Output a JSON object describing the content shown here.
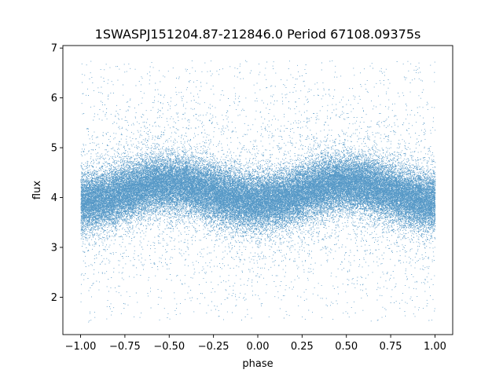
{
  "chart_data": {
    "type": "scatter",
    "title": "1SWASPJ151204.87-212846.0 Period 67108.09375s",
    "xlabel": "phase",
    "ylabel": "flux",
    "xlim": [
      -1.1,
      1.1
    ],
    "ylim": [
      1.25,
      7.05
    ],
    "xticks": [
      -1.0,
      -0.75,
      -0.5,
      -0.25,
      0.0,
      0.25,
      0.5,
      0.75,
      1.0
    ],
    "xtick_labels": [
      "−1.00",
      "−0.75",
      "−0.50",
      "−0.25",
      "0.00",
      "0.25",
      "0.50",
      "0.75",
      "1.00"
    ],
    "yticks": [
      2,
      3,
      4,
      5,
      6,
      7
    ],
    "ytick_labels": [
      "2",
      "3",
      "4",
      "5",
      "6",
      "7"
    ],
    "grid": false,
    "legend": "none",
    "marker_color": "#1f77b4",
    "series": [
      {
        "phase_range": [
          -1.0,
          1.0
        ],
        "point_count": 60000,
        "flux_median": 4.1,
        "flux_core_range": [
          3.3,
          5.0
        ],
        "flux_full_range": [
          1.5,
          6.75
        ],
        "sinusoid_amplitude": 0.18,
        "sinusoid_cycles_per_phase": 2,
        "flux_max_at_phase": [
          -0.5,
          0.5
        ],
        "flux_min_at_phase": [
          -1.0,
          0.0,
          1.0
        ]
      }
    ]
  }
}
